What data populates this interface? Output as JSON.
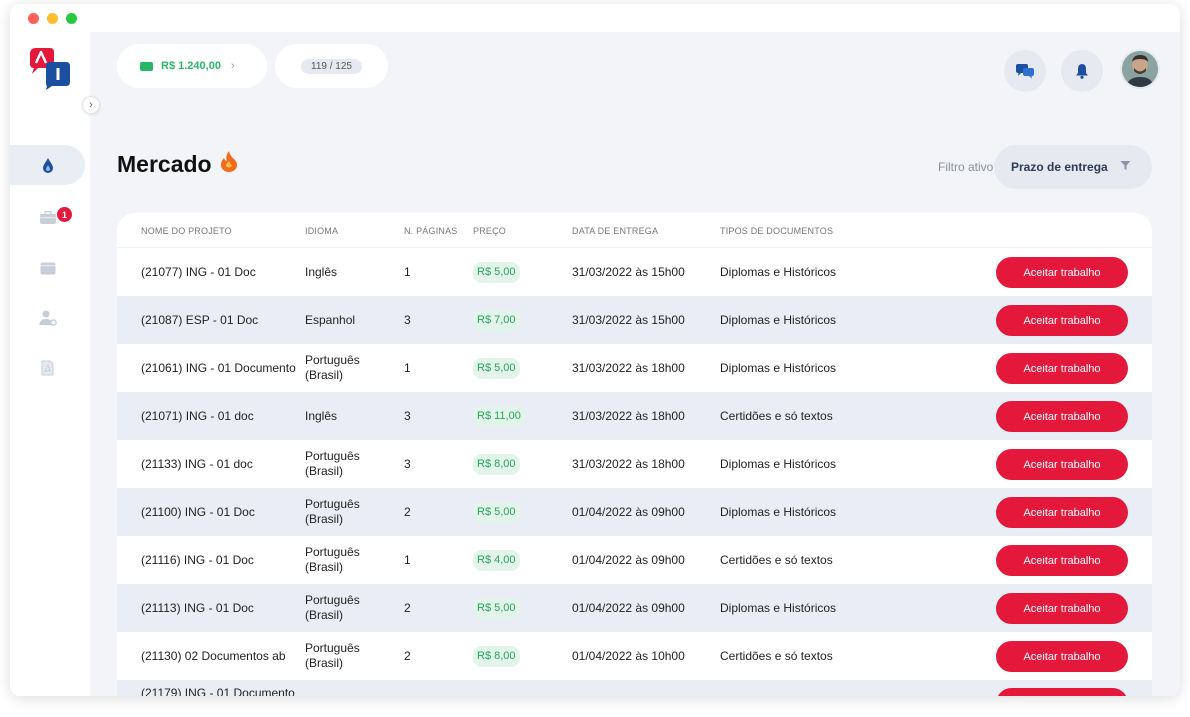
{
  "wallet": {
    "balance": "R$ 1.240,00",
    "chevron": "›"
  },
  "counter": {
    "value": "119 / 125"
  },
  "page": {
    "title": "Mercado",
    "emoji": "🔥"
  },
  "filter": {
    "label": "Filtro ativo:",
    "value": "Prazo de entrega"
  },
  "sidebar": {
    "collapse": "›",
    "badge_count": "1"
  },
  "table": {
    "headers": {
      "name": "NOME DO PROJETO",
      "language": "IDIOMA",
      "pages": "N. PÁGINAS",
      "price": "PREÇO",
      "date": "DATA DE ENTREGA",
      "types": "TIPOS DE DOCUMENTOS"
    },
    "action_label": "Aceitar trabalho",
    "rows": [
      {
        "name": "(21077) ING - 01 Doc",
        "language": "Inglês",
        "pages": "1",
        "price": "R$ 5,00",
        "date": "31/03/2022 às 15h00",
        "types": "Diplomas e Históricos"
      },
      {
        "name": "(21087) ESP - 01 Doc",
        "language": "Espanhol",
        "pages": "3",
        "price": "R$ 7,00",
        "date": "31/03/2022 às 15h00",
        "types": "Diplomas e Históricos"
      },
      {
        "name": "(21061) ING - 01 Documento",
        "language": "Português (Brasil)",
        "pages": "1",
        "price": "R$ 5,00",
        "date": "31/03/2022 às 18h00",
        "types": "Diplomas e Históricos"
      },
      {
        "name": "(21071) ING - 01 doc",
        "language": "Inglês",
        "pages": "3",
        "price": "R$ 11,00",
        "date": "31/03/2022 às 18h00",
        "types": "Certidões e só textos"
      },
      {
        "name": "(21133) ING - 01 doc",
        "language": "Português (Brasil)",
        "pages": "3",
        "price": "R$ 8,00",
        "date": "31/03/2022 às 18h00",
        "types": "Diplomas e Históricos"
      },
      {
        "name": "(21100) ING - 01 Doc",
        "language": "Português (Brasil)",
        "pages": "2",
        "price": "R$ 5,00",
        "date": "01/04/2022 às 09h00",
        "types": "Diplomas e Históricos"
      },
      {
        "name": "(21116) ING - 01 Doc",
        "language": "Português (Brasil)",
        "pages": "1",
        "price": "R$ 4,00",
        "date": "01/04/2022 às 09h00",
        "types": "Certidões e só textos"
      },
      {
        "name": "(21113) ING - 01 Doc",
        "language": "Português (Brasil)",
        "pages": "2",
        "price": "R$ 5,00",
        "date": "01/04/2022 às 09h00",
        "types": "Diplomas e Históricos"
      },
      {
        "name": "(21130) 02 Documentos ab",
        "language": "Português (Brasil)",
        "pages": "2",
        "price": "R$ 8,00",
        "date": "01/04/2022 às 10h00",
        "types": "Certidões e só textos"
      },
      {
        "name": "(21179) ING - 01 Documento",
        "language": "",
        "pages": "",
        "price": "",
        "date": "",
        "types": ""
      }
    ]
  },
  "colors": {
    "brand_red": "#e3183b",
    "brand_blue": "#1d4fa0",
    "accent_green": "#28b769"
  }
}
